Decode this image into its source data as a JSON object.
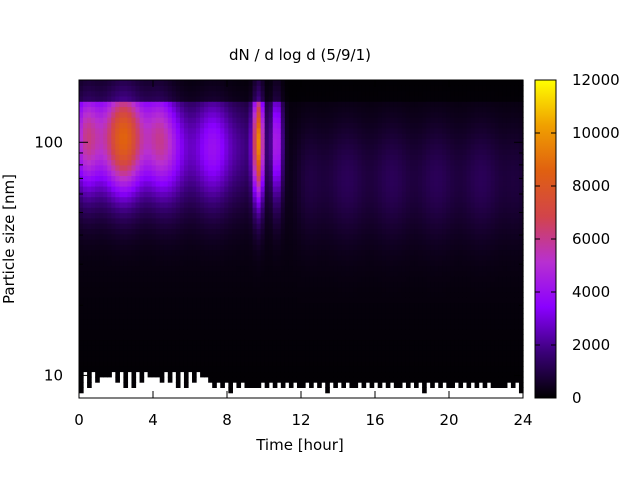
{
  "chart_data": {
    "type": "heatmap",
    "title": "dN / d log d (5/9/1)",
    "xlabel": "Time [hour]",
    "ylabel": "Particle size [nm]",
    "xlim": [
      0,
      24
    ],
    "ylim": [
      8,
      185
    ],
    "y_scale": "log",
    "x_ticks": [
      "0",
      "4",
      "8",
      "12",
      "16",
      "20",
      "24"
    ],
    "x_tick_values": [
      0,
      4,
      8,
      12,
      16,
      20,
      24
    ],
    "y_ticks": [
      "10",
      "100"
    ],
    "y_tick_values": [
      10,
      100
    ],
    "colorbar": {
      "ticks": [
        "0",
        "2000",
        "4000",
        "6000",
        "8000",
        "10000",
        "12000"
      ],
      "tick_values": [
        0,
        2000,
        4000,
        6000,
        8000,
        10000,
        12000
      ],
      "range": [
        0,
        12000
      ],
      "palette": [
        "#000000",
        "#3a0078",
        "#8a00ff",
        "#b830d0",
        "#d2444a",
        "#e06010",
        "#f0a000",
        "#ffff00"
      ]
    },
    "grid": false,
    "legend": "none",
    "modes": [
      {
        "start_hour": 0,
        "end_hour": 4.5,
        "peak_size_nm": 105,
        "peak_value": 8500
      },
      {
        "start_hour": 4.5,
        "end_hour": 9,
        "peak_size_nm": 95,
        "peak_value": 3800
      },
      {
        "start_hour": 9.7,
        "end_hour": 9.7,
        "peak_size_nm": 100,
        "peak_value": 9000
      },
      {
        "start_hour": 10.7,
        "end_hour": 10.7,
        "peak_size_nm": 100,
        "peak_value": 7000
      },
      {
        "start_hour": 12,
        "end_hour": 24,
        "peak_size_nm": 70,
        "peak_value": 1000
      }
    ]
  }
}
